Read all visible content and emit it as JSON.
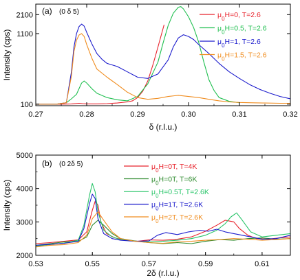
{
  "chart_data": [
    {
      "type": "line",
      "panel_label": "(a)",
      "direction_label": "(0 δ 5)",
      "xlabel": "δ (r.l.u.)",
      "ylabel": "Intensity (cps)",
      "y_scale": "log",
      "xlim": [
        0.27,
        0.32
      ],
      "ylim": [
        95,
        3000
      ],
      "x_ticks": [
        0.27,
        0.28,
        0.29,
        0.3,
        0.31,
        0.32
      ],
      "x_tick_labels": [
        "0.27",
        "0.28",
        "0.29",
        "0.30",
        "0.31",
        "0.32"
      ],
      "y_ticks": [
        100,
        1100,
        2100
      ],
      "y_tick_labels": [
        "100",
        "1100",
        "2100"
      ],
      "legend_position": "top-right",
      "series": [
        {
          "name": "μ0H=0, T=2.6",
          "name_parts": [
            {
              "t": "μ"
            },
            {
              "t": "0",
              "sub": true
            },
            {
              "t": "H=0, T=2.6"
            }
          ],
          "color": "#e8222b",
          "x": [
            0.27,
            0.275,
            0.277,
            0.2785,
            0.2792,
            0.28,
            0.281,
            0.282,
            0.284,
            0.286,
            0.288,
            0.289,
            0.29,
            0.291,
            0.292,
            0.293,
            0.294,
            0.2952
          ],
          "y": [
            100,
            100,
            101,
            103,
            102,
            101,
            101,
            101,
            102,
            104,
            108,
            112,
            125,
            155,
            220,
            380,
            700,
            1490
          ]
        },
        {
          "name": "μ0H=0.5, T=2.6",
          "name_parts": [
            {
              "t": "μ"
            },
            {
              "t": "0",
              "sub": true
            },
            {
              "t": "H=0.5, T=2.6"
            }
          ],
          "color": "#1fbf4f",
          "x": [
            0.27,
            0.274,
            0.276,
            0.277,
            0.278,
            0.2785,
            0.279,
            0.2795,
            0.28,
            0.281,
            0.282,
            0.284,
            0.286,
            0.288,
            0.29,
            0.292,
            0.294,
            0.295,
            0.296,
            0.297,
            0.298,
            0.2985,
            0.299,
            0.3,
            0.301,
            0.302,
            0.303,
            0.304,
            0.305,
            0.306,
            0.308,
            0.31
          ],
          "y": [
            100,
            100,
            105,
            120,
            140,
            170,
            205,
            220,
            205,
            170,
            145,
            125,
            116,
            112,
            130,
            200,
            420,
            800,
            1450,
            2200,
            2700,
            2750,
            2550,
            1950,
            1350,
            820,
            420,
            230,
            160,
            125,
            110,
            105
          ]
        },
        {
          "name": "μ0H=1, T=2.6",
          "name_parts": [
            {
              "t": "μ"
            },
            {
              "t": "0",
              "sub": true
            },
            {
              "t": "H=1, T=2.6"
            }
          ],
          "color": "#1a1acc",
          "x": [
            0.27,
            0.274,
            0.276,
            0.277,
            0.2775,
            0.278,
            0.2785,
            0.279,
            0.2795,
            0.28,
            0.281,
            0.282,
            0.283,
            0.284,
            0.286,
            0.288,
            0.29,
            0.292,
            0.294,
            0.296,
            0.297,
            0.298,
            0.299,
            0.3,
            0.301,
            0.302,
            0.304,
            0.306,
            0.308,
            0.31,
            0.312,
            0.314,
            0.316,
            0.318,
            0.32
          ],
          "y": [
            100,
            100,
            105,
            300,
            700,
            1100,
            1400,
            1520,
            1420,
            1150,
            780,
            560,
            460,
            400,
            360,
            300,
            250,
            240,
            280,
            450,
            700,
            950,
            1060,
            1000,
            900,
            760,
            560,
            400,
            300,
            240,
            195,
            165,
            145,
            130,
            120
          ]
        },
        {
          "name": "μ0H=1.5, T=2.6",
          "name_parts": [
            {
              "t": "μ"
            },
            {
              "t": "0",
              "sub": true
            },
            {
              "t": "H=1.5, T=2.6"
            }
          ],
          "color": "#f08c1e",
          "x": [
            0.27,
            0.274,
            0.276,
            0.277,
            0.2775,
            0.278,
            0.2785,
            0.279,
            0.2795,
            0.28,
            0.281,
            0.282,
            0.284,
            0.286,
            0.288,
            0.29,
            0.292,
            0.294,
            0.296,
            0.298,
            0.3,
            0.302,
            0.304,
            0.306,
            0.308,
            0.31,
            0.312,
            0.315,
            0.318,
            0.32
          ],
          "y": [
            100,
            100,
            105,
            260,
            600,
            880,
            1050,
            1100,
            1000,
            760,
            480,
            330,
            250,
            195,
            150,
            125,
            118,
            122,
            130,
            135,
            130,
            125,
            118,
            112,
            108,
            106,
            105,
            104,
            103,
            103
          ]
        }
      ]
    },
    {
      "type": "line",
      "panel_label": "(b)",
      "direction_label": "(0 2δ 5)",
      "xlabel": "2δ (r.l.u.)",
      "ylabel": "Intensity (cps)",
      "y_scale": "linear",
      "xlim": [
        0.53,
        0.62
      ],
      "ylim": [
        2000,
        5000
      ],
      "x_ticks": [
        0.53,
        0.55,
        0.57,
        0.59,
        0.61
      ],
      "x_tick_labels": [
        "0.53",
        "0.55",
        "0.57",
        "0.59",
        "0.61"
      ],
      "y_ticks": [
        2000,
        3000,
        4000,
        5000
      ],
      "y_tick_labels": [
        "2000",
        "3000",
        "4000",
        "5000"
      ],
      "legend_position": "top-right",
      "series": [
        {
          "name": "μ0H=0T, T=4K",
          "name_parts": [
            {
              "t": "μ"
            },
            {
              "t": "0",
              "sub": true
            },
            {
              "t": "H=0T, T=4K"
            }
          ],
          "color": "#e8222b",
          "x": [
            0.53,
            0.535,
            0.54,
            0.545,
            0.548,
            0.55,
            0.551,
            0.552,
            0.553,
            0.555,
            0.558,
            0.562,
            0.566,
            0.57,
            0.575,
            0.58,
            0.585,
            0.59,
            0.594,
            0.597,
            0.6,
            0.602,
            0.605,
            0.608,
            0.612,
            0.616,
            0.62
          ],
          "y": [
            2350,
            2380,
            2420,
            2460,
            2700,
            3350,
            3620,
            3500,
            3000,
            2650,
            2520,
            2450,
            2420,
            2460,
            2450,
            2480,
            2550,
            2720,
            2900,
            3050,
            3000,
            2800,
            2600,
            2500,
            2480,
            2520,
            2550
          ]
        },
        {
          "name": "μ0H=0T, T=6K",
          "name_parts": [
            {
              "t": "μ"
            },
            {
              "t": "0",
              "sub": true
            },
            {
              "t": "H=0T, T=6K"
            }
          ],
          "color": "#2e8b2e",
          "x": [
            0.53,
            0.535,
            0.54,
            0.545,
            0.548,
            0.55,
            0.552,
            0.554,
            0.557,
            0.56,
            0.565,
            0.57,
            0.575,
            0.58,
            0.585,
            0.59,
            0.595,
            0.6,
            0.605,
            0.61,
            0.615,
            0.62
          ],
          "y": [
            2300,
            2350,
            2400,
            2420,
            2550,
            2900,
            3050,
            2900,
            2650,
            2500,
            2430,
            2380,
            2350,
            2380,
            2350,
            2420,
            2470,
            2450,
            2500,
            2520,
            2480,
            2500
          ]
        },
        {
          "name": "μ0H=0.5T, T=2.6K",
          "name_parts": [
            {
              "t": "μ"
            },
            {
              "t": "0",
              "sub": true
            },
            {
              "t": "H=0.5T, T=2.6K"
            }
          ],
          "color": "#27c468",
          "x": [
            0.53,
            0.535,
            0.54,
            0.545,
            0.547,
            0.549,
            0.55,
            0.551,
            0.552,
            0.554,
            0.557,
            0.56,
            0.565,
            0.57,
            0.575,
            0.58,
            0.585,
            0.59,
            0.594,
            0.597,
            0.599,
            0.601,
            0.603,
            0.606,
            0.61,
            0.615,
            0.62
          ],
          "y": [
            2280,
            2320,
            2370,
            2450,
            2900,
            3800,
            4150,
            3900,
            3300,
            2750,
            2550,
            2470,
            2420,
            2400,
            2420,
            2450,
            2500,
            2600,
            2750,
            2950,
            3150,
            3270,
            3050,
            2700,
            2550,
            2600,
            2650
          ]
        },
        {
          "name": "μ0H=1T, T=2.6K",
          "name_parts": [
            {
              "t": "μ"
            },
            {
              "t": "0",
              "sub": true
            },
            {
              "t": "H=1T, T=2.6K"
            }
          ],
          "color": "#1a1acc",
          "x": [
            0.53,
            0.535,
            0.54,
            0.545,
            0.547,
            0.549,
            0.55,
            0.551,
            0.552,
            0.554,
            0.557,
            0.56,
            0.565,
            0.57,
            0.573,
            0.576,
            0.58,
            0.584,
            0.588,
            0.591,
            0.594,
            0.597,
            0.6,
            0.603,
            0.606,
            0.61,
            0.615,
            0.62
          ],
          "y": [
            2300,
            2330,
            2360,
            2420,
            2800,
            3550,
            3830,
            3700,
            3100,
            2650,
            2500,
            2450,
            2420,
            2430,
            2600,
            2680,
            2620,
            2700,
            2750,
            2720,
            2780,
            2700,
            2650,
            2600,
            2550,
            2480,
            2500,
            2600
          ]
        },
        {
          "name": "μ0H=2T, T=2.6K",
          "name_parts": [
            {
              "t": "μ"
            },
            {
              "t": "0",
              "sub": true
            },
            {
              "t": "H=2T, T=2.6K"
            }
          ],
          "color": "#f08c1e",
          "x": [
            0.53,
            0.535,
            0.54,
            0.545,
            0.548,
            0.55,
            0.552,
            0.554,
            0.557,
            0.56,
            0.565,
            0.57,
            0.575,
            0.58,
            0.585,
            0.59,
            0.595,
            0.6,
            0.605,
            0.61,
            0.615,
            0.62
          ],
          "y": [
            2250,
            2300,
            2320,
            2380,
            2600,
            3100,
            3300,
            3050,
            2700,
            2500,
            2420,
            2380,
            2360,
            2400,
            2420,
            2450,
            2470,
            2500,
            2480,
            2450,
            2470,
            2500
          ]
        }
      ]
    }
  ]
}
